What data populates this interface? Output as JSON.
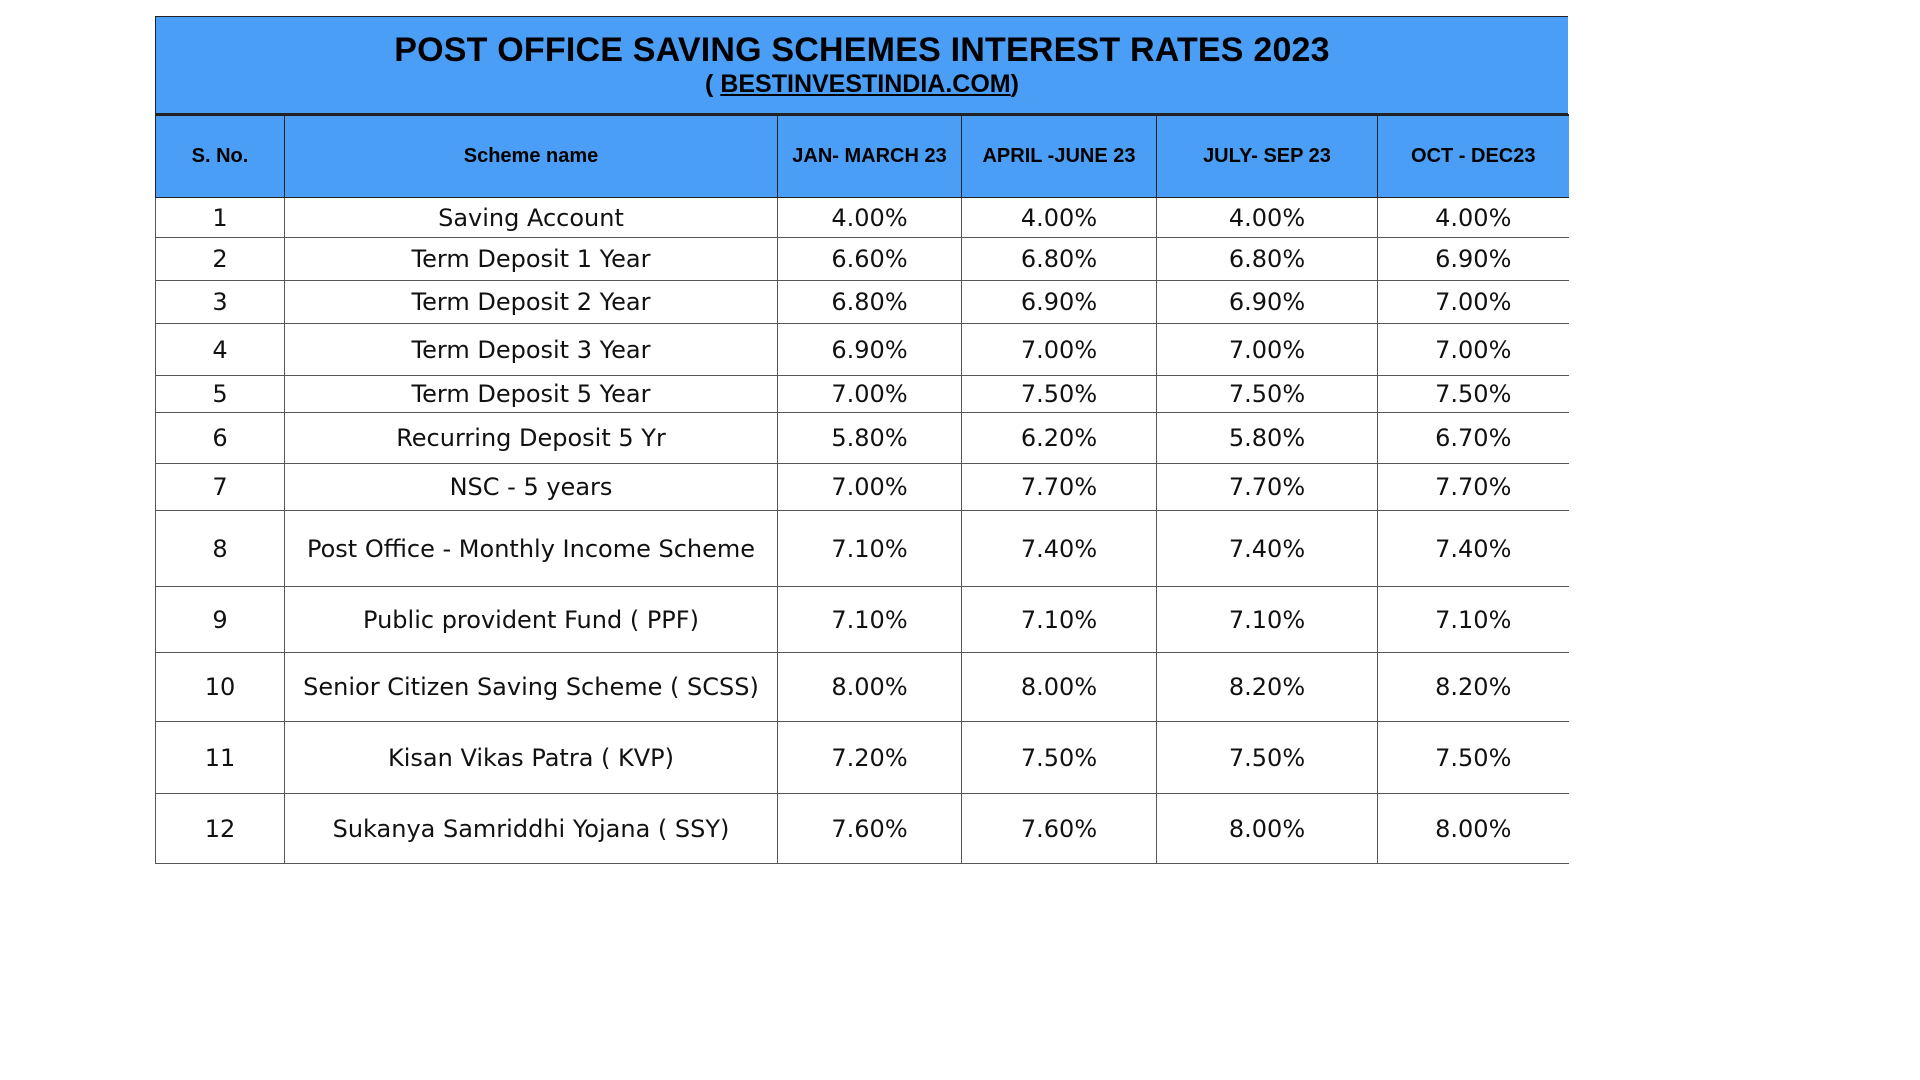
{
  "title": {
    "line1": "POST OFFICE SAVING SCHEMES INTEREST RATES 2023",
    "line2_prefix": "( ",
    "line2_link": "BESTINVESTINDIA.COM",
    "line2_suffix": ")"
  },
  "colors": {
    "header_bg": "#4a9ef5",
    "border": "#222222"
  },
  "table": {
    "columns": [
      "S. No.",
      "Scheme name",
      "JAN- MARCH 23",
      "APRIL -JUNE 23",
      "JULY- SEP 23",
      "OCT - DEC23"
    ],
    "rows": [
      [
        "1",
        "Saving Account",
        "4.00%",
        "4.00%",
        "4.00%",
        "4.00%"
      ],
      [
        "2",
        "Term Deposit 1 Year",
        "6.60%",
        "6.80%",
        "6.80%",
        "6.90%"
      ],
      [
        "3",
        "Term Deposit 2 Year",
        "6.80%",
        "6.90%",
        "6.90%",
        "7.00%"
      ],
      [
        "4",
        "Term Deposit 3 Year",
        "6.90%",
        "7.00%",
        "7.00%",
        "7.00%"
      ],
      [
        "5",
        "Term Deposit 5 Year",
        "7.00%",
        "7.50%",
        "7.50%",
        "7.50%"
      ],
      [
        "6",
        "Recurring Deposit 5 Yr",
        "5.80%",
        "6.20%",
        "5.80%",
        "6.70%"
      ],
      [
        "7",
        "NSC - 5 years",
        "7.00%",
        "7.70%",
        "7.70%",
        "7.70%"
      ],
      [
        "8",
        "Post Office - Monthly Income Scheme",
        "7.10%",
        "7.40%",
        "7.40%",
        "7.40%"
      ],
      [
        "9",
        "Public provident Fund ( PPF)",
        "7.10%",
        "7.10%",
        "7.10%",
        "7.10%"
      ],
      [
        "10",
        "Senior Citizen Saving Scheme ( SCSS)",
        "8.00%",
        "8.00%",
        "8.20%",
        "8.20%"
      ],
      [
        "11",
        "Kisan Vikas Patra ( KVP)",
        "7.20%",
        "7.50%",
        "7.50%",
        "7.50%"
      ],
      [
        "12",
        "Sukanya Samriddhi Yojana ( SSY)",
        "7.60%",
        "7.60%",
        "8.00%",
        "8.00%"
      ]
    ]
  }
}
